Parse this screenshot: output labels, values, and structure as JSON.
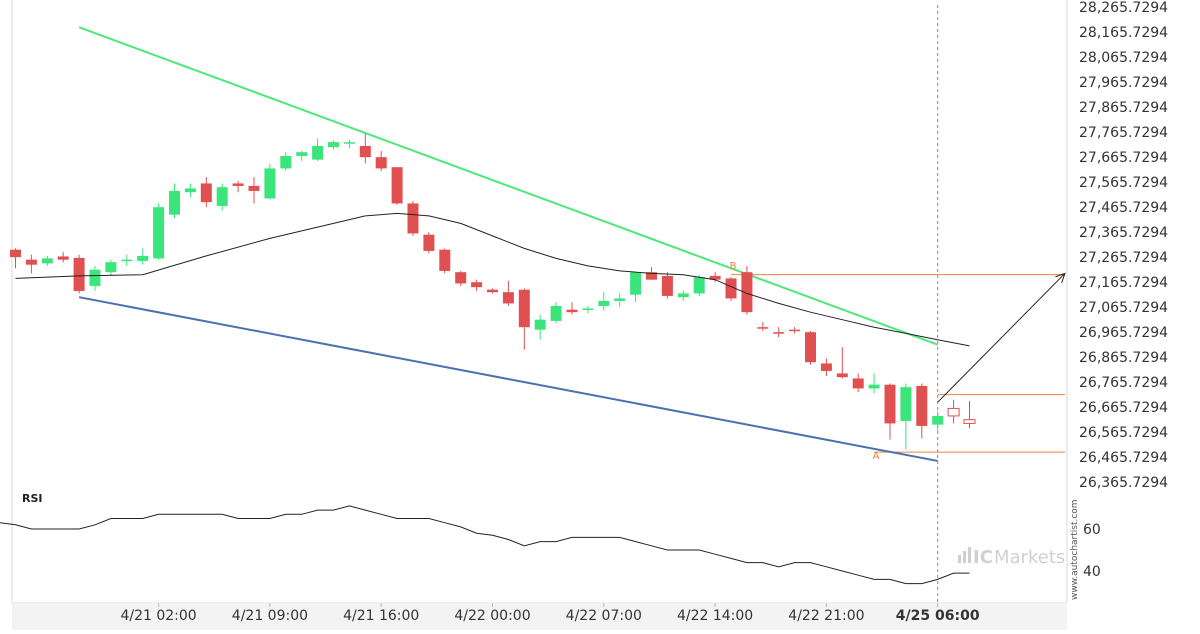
{
  "chart_data": {
    "type": "candlestick",
    "y_tick_labels": [
      "28,265.7294",
      "28,165.7294",
      "28,065.7294",
      "27,965.7294",
      "27,865.7294",
      "27,765.7294",
      "27,665.7294",
      "27,565.7294",
      "27,465.7294",
      "27,365.7294",
      "27,265.7294",
      "27,165.7294",
      "27,065.7294",
      "26,965.7294",
      "26,865.7294",
      "26,765.7294",
      "26,665.7294",
      "26,565.7294",
      "26,465.7294",
      "26,365.7294"
    ],
    "ylim": [
      26320,
      28275
    ],
    "x_tick_labels": [
      {
        "index": 9,
        "label": "4/21 02:00",
        "bold": false
      },
      {
        "index": 16,
        "label": "4/21 09:00",
        "bold": false
      },
      {
        "index": 23,
        "label": "4/21 16:00",
        "bold": false
      },
      {
        "index": 30,
        "label": "4/22 00:00",
        "bold": false
      },
      {
        "index": 37,
        "label": "4/22 07:00",
        "bold": false
      },
      {
        "index": 44,
        "label": "4/22 14:00",
        "bold": false
      },
      {
        "index": 51,
        "label": "4/22 21:00",
        "bold": false
      },
      {
        "index": 58,
        "label": "4/25 06:00",
        "bold": true
      }
    ],
    "current_index": 58,
    "candles": [
      [
        27295,
        27300,
        27220,
        27265
      ],
      [
        27255,
        27275,
        27200,
        27235
      ],
      [
        27240,
        27270,
        27230,
        27260
      ],
      [
        27268,
        27285,
        27245,
        27255
      ],
      [
        27262,
        27275,
        27120,
        27130
      ],
      [
        27150,
        27230,
        27130,
        27215
      ],
      [
        27205,
        27255,
        27190,
        27245
      ],
      [
        27250,
        27275,
        27230,
        27255
      ],
      [
        27250,
        27300,
        27235,
        27270
      ],
      [
        27260,
        27480,
        27255,
        27465
      ],
      [
        27435,
        27560,
        27420,
        27530
      ],
      [
        27525,
        27560,
        27505,
        27540
      ],
      [
        27560,
        27585,
        27465,
        27485
      ],
      [
        27470,
        27560,
        27450,
        27545
      ],
      [
        27560,
        27570,
        27525,
        27550
      ],
      [
        27550,
        27585,
        27480,
        27530
      ],
      [
        27500,
        27640,
        27495,
        27620
      ],
      [
        27620,
        27685,
        27610,
        27670
      ],
      [
        27670,
        27690,
        27650,
        27685
      ],
      [
        27655,
        27740,
        27650,
        27710
      ],
      [
        27705,
        27730,
        27695,
        27725
      ],
      [
        27720,
        27735,
        27700,
        27725
      ],
      [
        27710,
        27760,
        27640,
        27665
      ],
      [
        27665,
        27690,
        27610,
        27620
      ],
      [
        27625,
        27625,
        27475,
        27480
      ],
      [
        27480,
        27490,
        27350,
        27360
      ],
      [
        27355,
        27365,
        27280,
        27290
      ],
      [
        27295,
        27300,
        27200,
        27210
      ],
      [
        27205,
        27210,
        27150,
        27160
      ],
      [
        27165,
        27175,
        27130,
        27145
      ],
      [
        27135,
        27140,
        27120,
        27125
      ],
      [
        27125,
        27170,
        27070,
        27080
      ],
      [
        27135,
        27140,
        26895,
        26985
      ],
      [
        26975,
        27035,
        26935,
        27015
      ],
      [
        27010,
        27085,
        27000,
        27070
      ],
      [
        27055,
        27085,
        27035,
        27045
      ],
      [
        27055,
        27070,
        27040,
        27060
      ],
      [
        27070,
        27125,
        27050,
        27090
      ],
      [
        27090,
        27120,
        27065,
        27100
      ],
      [
        27115,
        27205,
        27085,
        27205
      ],
      [
        27205,
        27225,
        27175,
        27175
      ],
      [
        27190,
        27205,
        27100,
        27110
      ],
      [
        27105,
        27130,
        27090,
        27120
      ],
      [
        27120,
        27195,
        27110,
        27185
      ],
      [
        27190,
        27205,
        27165,
        27175
      ],
      [
        27180,
        27185,
        27090,
        27100
      ],
      [
        27205,
        27230,
        27035,
        27045
      ],
      [
        26985,
        27005,
        26970,
        26980
      ],
      [
        26965,
        26985,
        26945,
        26960
      ],
      [
        26975,
        26985,
        26960,
        26970
      ],
      [
        26965,
        26970,
        26835,
        26845
      ],
      [
        26840,
        26860,
        26790,
        26810
      ],
      [
        26800,
        26905,
        26780,
        26785
      ],
      [
        26780,
        26800,
        26725,
        26740
      ],
      [
        26740,
        26800,
        26720,
        26755
      ],
      [
        26755,
        26760,
        26535,
        26600
      ],
      [
        26610,
        26760,
        26495,
        26745
      ],
      [
        26750,
        26760,
        26540,
        26590
      ],
      [
        26595,
        26650,
        26560,
        26630
      ]
    ],
    "projected_candles": [
      [
        26660,
        26695,
        26600,
        26630
      ],
      [
        26615,
        26690,
        26580,
        26600
      ]
    ],
    "moving_average": [
      [
        0,
        27180
      ],
      [
        4,
        27190
      ],
      [
        8,
        27195
      ],
      [
        12,
        27270
      ],
      [
        16,
        27340
      ],
      [
        20,
        27400
      ],
      [
        22,
        27430
      ],
      [
        24,
        27440
      ],
      [
        26,
        27430
      ],
      [
        28,
        27400
      ],
      [
        30,
        27350
      ],
      [
        32,
        27300
      ],
      [
        34,
        27260
      ],
      [
        36,
        27230
      ],
      [
        38,
        27210
      ],
      [
        40,
        27200
      ],
      [
        42,
        27195
      ],
      [
        44,
        27175
      ],
      [
        46,
        27120
      ],
      [
        48,
        27080
      ],
      [
        50,
        27045
      ],
      [
        52,
        27015
      ],
      [
        54,
        26985
      ],
      [
        56,
        26960
      ],
      [
        58,
        26935
      ],
      [
        60,
        26910
      ]
    ],
    "upper_trendline": [
      [
        4,
        28185
      ],
      [
        58,
        26915
      ]
    ],
    "lower_trendline": [
      [
        4,
        27105
      ],
      [
        58,
        26450
      ]
    ],
    "pattern_points": [
      {
        "label": "B",
        "index": 45,
        "value": 27210
      },
      {
        "label": "A",
        "index": 54,
        "value": 26505
      }
    ],
    "level_lines": [
      27195,
      26715,
      26485
    ],
    "forecast_arrow": {
      "from": [
        58,
        26685
      ],
      "to": [
        66,
        27200
      ]
    },
    "rsi": {
      "title": "RSI",
      "y_tick_labels": [
        "60",
        "40"
      ],
      "ylim": [
        30,
        75
      ],
      "values": [
        [
          0,
          62
        ],
        [
          1,
          60
        ],
        [
          2,
          60
        ],
        [
          3,
          60
        ],
        [
          4,
          60
        ],
        [
          5,
          62
        ],
        [
          6,
          65
        ],
        [
          7,
          65
        ],
        [
          8,
          65
        ],
        [
          9,
          67
        ],
        [
          10,
          67
        ],
        [
          11,
          67
        ],
        [
          12,
          67
        ],
        [
          13,
          67
        ],
        [
          14,
          65
        ],
        [
          15,
          65
        ],
        [
          16,
          65
        ],
        [
          17,
          67
        ],
        [
          18,
          67
        ],
        [
          19,
          69
        ],
        [
          20,
          69
        ],
        [
          21,
          71
        ],
        [
          22,
          69
        ],
        [
          23,
          67
        ],
        [
          24,
          65
        ],
        [
          25,
          65
        ],
        [
          26,
          65
        ],
        [
          27,
          63
        ],
        [
          28,
          61
        ],
        [
          29,
          58
        ],
        [
          30,
          57
        ],
        [
          31,
          55
        ],
        [
          32,
          52
        ],
        [
          33,
          54
        ],
        [
          34,
          54
        ],
        [
          35,
          56
        ],
        [
          36,
          56
        ],
        [
          37,
          56
        ],
        [
          38,
          56
        ],
        [
          39,
          54
        ],
        [
          40,
          52
        ],
        [
          41,
          50
        ],
        [
          42,
          50
        ],
        [
          43,
          50
        ],
        [
          44,
          48
        ],
        [
          45,
          46
        ],
        [
          46,
          44
        ],
        [
          47,
          44
        ],
        [
          48,
          42
        ],
        [
          49,
          44
        ],
        [
          50,
          44
        ],
        [
          51,
          42
        ],
        [
          52,
          40
        ],
        [
          53,
          38
        ],
        [
          54,
          36
        ],
        [
          55,
          36
        ],
        [
          56,
          34
        ],
        [
          57,
          34
        ],
        [
          58,
          36
        ],
        [
          59,
          39
        ],
        [
          60,
          39
        ]
      ]
    }
  },
  "colors": {
    "bull": "#3ce57c",
    "bear": "#e05050",
    "upper_trendline": "#4de87a",
    "lower_trendline": "#4a72b0",
    "level_line": "#f08040",
    "moving_average": "#222222",
    "forecast_arrow": "#222222",
    "axis_line": "#d8d8d8"
  },
  "watermark": "www.autochartist.com",
  "brand": {
    "part1": "IC",
    "part2": "Markets"
  }
}
